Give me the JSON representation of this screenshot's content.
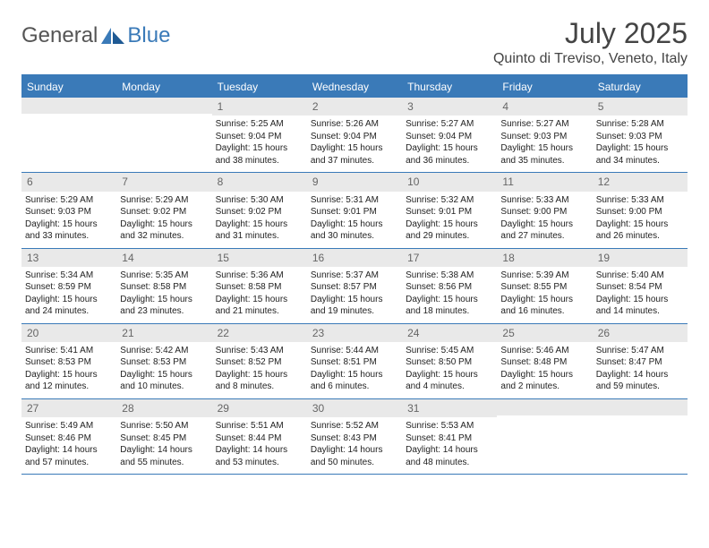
{
  "brand": {
    "part1": "General",
    "part2": "Blue"
  },
  "title": "July 2025",
  "location": "Quinto di Treviso, Veneto, Italy",
  "colors": {
    "accent": "#3a7ab8",
    "header_text": "#ffffff",
    "daynum_bg": "#e9e9e9",
    "daynum_text": "#666666",
    "body_text": "#222222",
    "title_text": "#444444"
  },
  "day_headers": [
    "Sunday",
    "Monday",
    "Tuesday",
    "Wednesday",
    "Thursday",
    "Friday",
    "Saturday"
  ],
  "weeks": [
    [
      {
        "n": "",
        "sr": "",
        "ss": "",
        "dl": ""
      },
      {
        "n": "",
        "sr": "",
        "ss": "",
        "dl": ""
      },
      {
        "n": "1",
        "sr": "Sunrise: 5:25 AM",
        "ss": "Sunset: 9:04 PM",
        "dl": "Daylight: 15 hours and 38 minutes."
      },
      {
        "n": "2",
        "sr": "Sunrise: 5:26 AM",
        "ss": "Sunset: 9:04 PM",
        "dl": "Daylight: 15 hours and 37 minutes."
      },
      {
        "n": "3",
        "sr": "Sunrise: 5:27 AM",
        "ss": "Sunset: 9:04 PM",
        "dl": "Daylight: 15 hours and 36 minutes."
      },
      {
        "n": "4",
        "sr": "Sunrise: 5:27 AM",
        "ss": "Sunset: 9:03 PM",
        "dl": "Daylight: 15 hours and 35 minutes."
      },
      {
        "n": "5",
        "sr": "Sunrise: 5:28 AM",
        "ss": "Sunset: 9:03 PM",
        "dl": "Daylight: 15 hours and 34 minutes."
      }
    ],
    [
      {
        "n": "6",
        "sr": "Sunrise: 5:29 AM",
        "ss": "Sunset: 9:03 PM",
        "dl": "Daylight: 15 hours and 33 minutes."
      },
      {
        "n": "7",
        "sr": "Sunrise: 5:29 AM",
        "ss": "Sunset: 9:02 PM",
        "dl": "Daylight: 15 hours and 32 minutes."
      },
      {
        "n": "8",
        "sr": "Sunrise: 5:30 AM",
        "ss": "Sunset: 9:02 PM",
        "dl": "Daylight: 15 hours and 31 minutes."
      },
      {
        "n": "9",
        "sr": "Sunrise: 5:31 AM",
        "ss": "Sunset: 9:01 PM",
        "dl": "Daylight: 15 hours and 30 minutes."
      },
      {
        "n": "10",
        "sr": "Sunrise: 5:32 AM",
        "ss": "Sunset: 9:01 PM",
        "dl": "Daylight: 15 hours and 29 minutes."
      },
      {
        "n": "11",
        "sr": "Sunrise: 5:33 AM",
        "ss": "Sunset: 9:00 PM",
        "dl": "Daylight: 15 hours and 27 minutes."
      },
      {
        "n": "12",
        "sr": "Sunrise: 5:33 AM",
        "ss": "Sunset: 9:00 PM",
        "dl": "Daylight: 15 hours and 26 minutes."
      }
    ],
    [
      {
        "n": "13",
        "sr": "Sunrise: 5:34 AM",
        "ss": "Sunset: 8:59 PM",
        "dl": "Daylight: 15 hours and 24 minutes."
      },
      {
        "n": "14",
        "sr": "Sunrise: 5:35 AM",
        "ss": "Sunset: 8:58 PM",
        "dl": "Daylight: 15 hours and 23 minutes."
      },
      {
        "n": "15",
        "sr": "Sunrise: 5:36 AM",
        "ss": "Sunset: 8:58 PM",
        "dl": "Daylight: 15 hours and 21 minutes."
      },
      {
        "n": "16",
        "sr": "Sunrise: 5:37 AM",
        "ss": "Sunset: 8:57 PM",
        "dl": "Daylight: 15 hours and 19 minutes."
      },
      {
        "n": "17",
        "sr": "Sunrise: 5:38 AM",
        "ss": "Sunset: 8:56 PM",
        "dl": "Daylight: 15 hours and 18 minutes."
      },
      {
        "n": "18",
        "sr": "Sunrise: 5:39 AM",
        "ss": "Sunset: 8:55 PM",
        "dl": "Daylight: 15 hours and 16 minutes."
      },
      {
        "n": "19",
        "sr": "Sunrise: 5:40 AM",
        "ss": "Sunset: 8:54 PM",
        "dl": "Daylight: 15 hours and 14 minutes."
      }
    ],
    [
      {
        "n": "20",
        "sr": "Sunrise: 5:41 AM",
        "ss": "Sunset: 8:53 PM",
        "dl": "Daylight: 15 hours and 12 minutes."
      },
      {
        "n": "21",
        "sr": "Sunrise: 5:42 AM",
        "ss": "Sunset: 8:53 PM",
        "dl": "Daylight: 15 hours and 10 minutes."
      },
      {
        "n": "22",
        "sr": "Sunrise: 5:43 AM",
        "ss": "Sunset: 8:52 PM",
        "dl": "Daylight: 15 hours and 8 minutes."
      },
      {
        "n": "23",
        "sr": "Sunrise: 5:44 AM",
        "ss": "Sunset: 8:51 PM",
        "dl": "Daylight: 15 hours and 6 minutes."
      },
      {
        "n": "24",
        "sr": "Sunrise: 5:45 AM",
        "ss": "Sunset: 8:50 PM",
        "dl": "Daylight: 15 hours and 4 minutes."
      },
      {
        "n": "25",
        "sr": "Sunrise: 5:46 AM",
        "ss": "Sunset: 8:48 PM",
        "dl": "Daylight: 15 hours and 2 minutes."
      },
      {
        "n": "26",
        "sr": "Sunrise: 5:47 AM",
        "ss": "Sunset: 8:47 PM",
        "dl": "Daylight: 14 hours and 59 minutes."
      }
    ],
    [
      {
        "n": "27",
        "sr": "Sunrise: 5:49 AM",
        "ss": "Sunset: 8:46 PM",
        "dl": "Daylight: 14 hours and 57 minutes."
      },
      {
        "n": "28",
        "sr": "Sunrise: 5:50 AM",
        "ss": "Sunset: 8:45 PM",
        "dl": "Daylight: 14 hours and 55 minutes."
      },
      {
        "n": "29",
        "sr": "Sunrise: 5:51 AM",
        "ss": "Sunset: 8:44 PM",
        "dl": "Daylight: 14 hours and 53 minutes."
      },
      {
        "n": "30",
        "sr": "Sunrise: 5:52 AM",
        "ss": "Sunset: 8:43 PM",
        "dl": "Daylight: 14 hours and 50 minutes."
      },
      {
        "n": "31",
        "sr": "Sunrise: 5:53 AM",
        "ss": "Sunset: 8:41 PM",
        "dl": "Daylight: 14 hours and 48 minutes."
      },
      {
        "n": "",
        "sr": "",
        "ss": "",
        "dl": ""
      },
      {
        "n": "",
        "sr": "",
        "ss": "",
        "dl": ""
      }
    ]
  ]
}
